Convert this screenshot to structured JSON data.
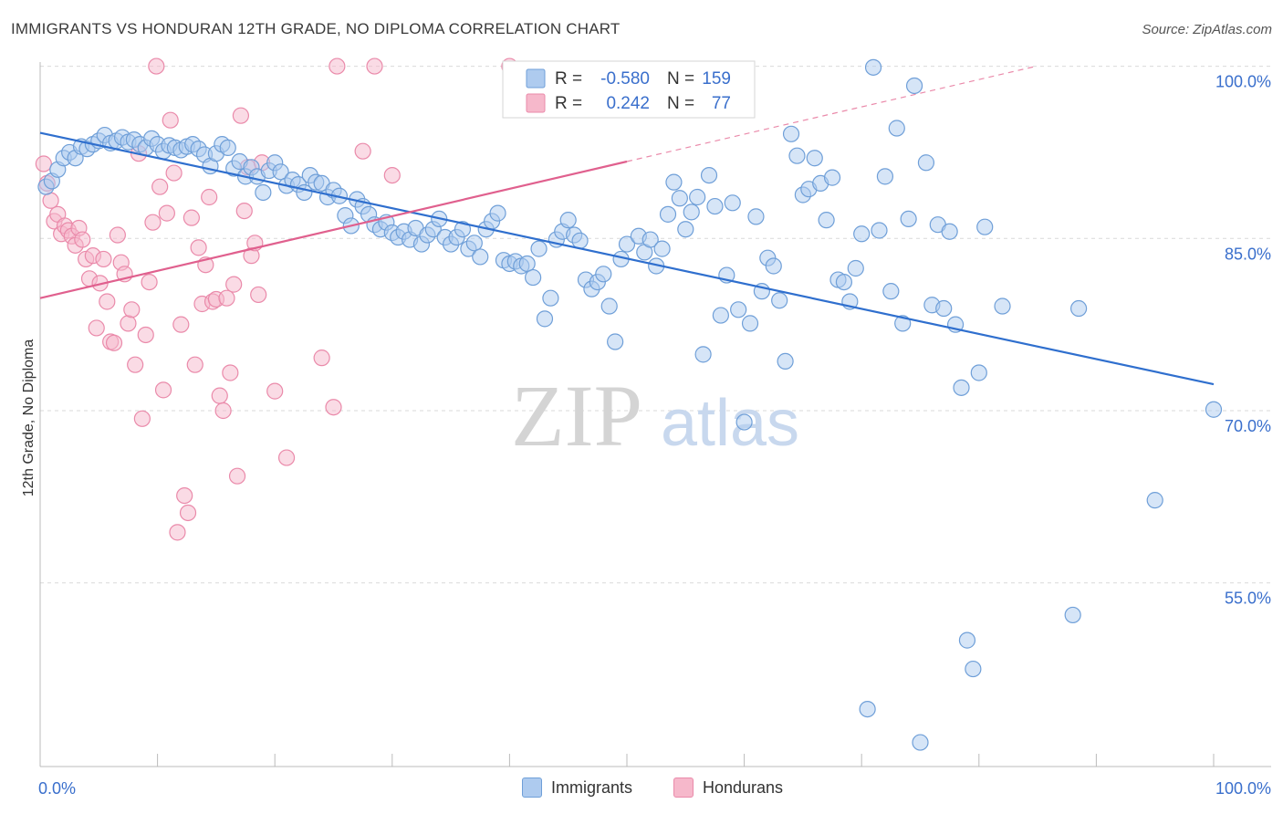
{
  "title": "IMMIGRANTS VS HONDURAN 12TH GRADE, NO DIPLOMA CORRELATION CHART",
  "source": "Source: ZipAtlas.com",
  "watermark": {
    "zip": "ZIP",
    "atlas": "atlas"
  },
  "legend": {
    "rows": [
      {
        "r_label": "R =",
        "r_value": "-0.580",
        "n_label": "N =",
        "n_value": "159"
      },
      {
        "r_label": "R =",
        "r_value": "0.242",
        "n_label": "N =",
        "n_value": "77"
      }
    ]
  },
  "bottom_legend": [
    "Immigrants",
    "Hondurans"
  ],
  "colors": {
    "immigrants_fill": "#aecbef",
    "immigrants_stroke": "#6f9fd8",
    "immigrants_line": "#2f6fce",
    "hondurans_fill": "#f6b8cb",
    "hondurans_stroke": "#ea8aaa",
    "hondurans_line": "#e0608e",
    "value_text": "#3a6fcc",
    "grid": "#d9d9d9"
  },
  "chart_data": {
    "type": "scatter",
    "xlabel": "",
    "ylabel": "12th Grade, No Diploma",
    "xlim": [
      0,
      100
    ],
    "ylim": [
      39,
      101
    ],
    "x_tick_labels": [
      {
        "value": 0,
        "label": "0.0%"
      },
      {
        "value": 100,
        "label": "100.0%"
      }
    ],
    "y_tick_labels": [
      {
        "value": 100,
        "label": "100.0%"
      },
      {
        "value": 85,
        "label": "85.0%"
      },
      {
        "value": 70,
        "label": "70.0%"
      },
      {
        "value": 55,
        "label": "55.0%"
      }
    ],
    "series": [
      {
        "name": "Immigrants",
        "trend": {
          "x0": 0,
          "y0": 94.2,
          "x1": 100,
          "y1": 72.3
        },
        "points": [
          [
            0.5,
            89.5
          ],
          [
            1,
            90
          ],
          [
            1.5,
            91
          ],
          [
            2,
            92
          ],
          [
            2.5,
            92.5
          ],
          [
            3,
            92
          ],
          [
            3.5,
            93
          ],
          [
            4,
            92.8
          ],
          [
            4.5,
            93.2
          ],
          [
            5,
            93.5
          ],
          [
            5.5,
            94
          ],
          [
            6,
            93.3
          ],
          [
            6.5,
            93.5
          ],
          [
            7,
            93.8
          ],
          [
            7.5,
            93.4
          ],
          [
            8,
            93.6
          ],
          [
            8.5,
            93.2
          ],
          [
            9,
            92.9
          ],
          [
            9.5,
            93.7
          ],
          [
            10,
            93.2
          ],
          [
            10.5,
            92.6
          ],
          [
            11,
            93.1
          ],
          [
            11.5,
            92.9
          ],
          [
            12,
            92.7
          ],
          [
            12.5,
            93
          ],
          [
            13,
            93.2
          ],
          [
            13.5,
            92.8
          ],
          [
            14,
            92.3
          ],
          [
            14.5,
            91.3
          ],
          [
            15,
            92.4
          ],
          [
            15.5,
            93.2
          ],
          [
            16,
            92.9
          ],
          [
            16.5,
            91.1
          ],
          [
            17,
            91.7
          ],
          [
            17.5,
            90.4
          ],
          [
            18,
            91.2
          ],
          [
            18.5,
            90.4
          ],
          [
            19,
            89
          ],
          [
            19.5,
            90.9
          ],
          [
            20,
            91.6
          ],
          [
            20.5,
            90.8
          ],
          [
            21,
            89.6
          ],
          [
            21.5,
            90.1
          ],
          [
            22,
            89.7
          ],
          [
            22.5,
            89
          ],
          [
            23,
            90.5
          ],
          [
            23.5,
            89.9
          ],
          [
            24,
            89.8
          ],
          [
            24.5,
            88.6
          ],
          [
            25,
            89.2
          ],
          [
            25.5,
            88.7
          ],
          [
            26,
            87
          ],
          [
            26.5,
            86.1
          ],
          [
            27,
            88.4
          ],
          [
            27.5,
            87.8
          ],
          [
            28,
            87.1
          ],
          [
            28.5,
            86.2
          ],
          [
            29,
            85.8
          ],
          [
            29.5,
            86.4
          ],
          [
            30,
            85.5
          ],
          [
            30.5,
            85.1
          ],
          [
            31,
            85.6
          ],
          [
            31.5,
            84.9
          ],
          [
            32,
            85.9
          ],
          [
            32.5,
            84.5
          ],
          [
            33,
            85.3
          ],
          [
            33.5,
            85.8
          ],
          [
            34,
            86.7
          ],
          [
            34.5,
            85.1
          ],
          [
            35,
            84.5
          ],
          [
            35.5,
            85.1
          ],
          [
            36,
            85.8
          ],
          [
            36.5,
            84.1
          ],
          [
            37,
            84.6
          ],
          [
            37.5,
            83.4
          ],
          [
            38,
            85.8
          ],
          [
            38.5,
            86.5
          ],
          [
            39,
            87.2
          ],
          [
            39.5,
            83.1
          ],
          [
            40,
            82.8
          ],
          [
            40.5,
            83
          ],
          [
            41,
            82.6
          ],
          [
            41.5,
            82.8
          ],
          [
            42,
            81.6
          ],
          [
            42.5,
            84.1
          ],
          [
            43,
            78
          ],
          [
            43.5,
            79.8
          ],
          [
            44,
            84.9
          ],
          [
            44.5,
            85.6
          ],
          [
            45,
            86.6
          ],
          [
            45.5,
            85.3
          ],
          [
            46,
            84.8
          ],
          [
            46.5,
            81.4
          ],
          [
            47,
            80.6
          ],
          [
            47.5,
            81.2
          ],
          [
            48,
            81.9
          ],
          [
            48.5,
            79.1
          ],
          [
            49,
            76
          ],
          [
            49.5,
            83.2
          ],
          [
            50,
            84.5
          ],
          [
            51,
            85.2
          ],
          [
            51.5,
            83.8
          ],
          [
            52,
            84.9
          ],
          [
            52.5,
            82.6
          ],
          [
            53,
            84.1
          ],
          [
            53.5,
            87.1
          ],
          [
            54,
            89.9
          ],
          [
            54.5,
            88.5
          ],
          [
            55,
            85.8
          ],
          [
            55.5,
            87.3
          ],
          [
            56,
            88.6
          ],
          [
            56.5,
            74.9
          ],
          [
            57,
            90.5
          ],
          [
            57.5,
            87.8
          ],
          [
            58,
            78.3
          ],
          [
            58.5,
            81.8
          ],
          [
            59,
            88.1
          ],
          [
            59.5,
            78.8
          ],
          [
            60,
            69
          ],
          [
            60.5,
            77.6
          ],
          [
            61,
            86.9
          ],
          [
            61.5,
            80.4
          ],
          [
            62,
            83.3
          ],
          [
            62.5,
            82.6
          ],
          [
            63,
            79.6
          ],
          [
            63.5,
            74.3
          ],
          [
            64,
            94.1
          ],
          [
            64.5,
            92.2
          ],
          [
            65,
            88.8
          ],
          [
            65.5,
            89.3
          ],
          [
            66,
            92
          ],
          [
            66.5,
            89.8
          ],
          [
            67,
            86.6
          ],
          [
            67.5,
            90.3
          ],
          [
            68,
            81.4
          ],
          [
            68.5,
            81.2
          ],
          [
            69,
            79.5
          ],
          [
            69.5,
            82.4
          ],
          [
            70,
            85.4
          ],
          [
            70.5,
            44
          ],
          [
            71,
            99.9
          ],
          [
            71.5,
            85.7
          ],
          [
            72,
            90.4
          ],
          [
            72.5,
            80.4
          ],
          [
            73,
            94.6
          ],
          [
            73.5,
            77.6
          ],
          [
            74,
            86.7
          ],
          [
            74.5,
            98.3
          ],
          [
            75,
            41.1
          ],
          [
            75.5,
            91.6
          ],
          [
            76,
            79.2
          ],
          [
            76.5,
            86.2
          ],
          [
            77,
            78.9
          ],
          [
            77.5,
            85.6
          ],
          [
            78,
            77.5
          ],
          [
            78.5,
            72
          ],
          [
            79,
            50
          ],
          [
            79.5,
            47.5
          ],
          [
            80,
            73.3
          ],
          [
            80.5,
            86
          ],
          [
            82,
            79.1
          ],
          [
            88,
            52.2
          ],
          [
            88.5,
            78.9
          ],
          [
            95,
            62.2
          ],
          [
            100,
            70.1
          ]
        ]
      },
      {
        "name": "Hondurans",
        "trend": {
          "x0": 0,
          "y0": 79.8,
          "x1": 50,
          "y1": 91.7,
          "dash_to_x": 100,
          "dash_to_y": 103.6
        },
        "points": [
          [
            0.3,
            91.5
          ],
          [
            0.6,
            89.8
          ],
          [
            0.9,
            88.3
          ],
          [
            1.2,
            86.5
          ],
          [
            1.5,
            87.1
          ],
          [
            1.8,
            85.4
          ],
          [
            2.1,
            86.1
          ],
          [
            2.4,
            85.7
          ],
          [
            2.7,
            85.2
          ],
          [
            3,
            84.4
          ],
          [
            3.3,
            85.9
          ],
          [
            3.6,
            84.9
          ],
          [
            3.9,
            83.2
          ],
          [
            4.2,
            81.5
          ],
          [
            4.5,
            83.5
          ],
          [
            4.8,
            77.2
          ],
          [
            5.1,
            81.1
          ],
          [
            5.4,
            83.2
          ],
          [
            5.7,
            79.5
          ],
          [
            6,
            76
          ],
          [
            6.3,
            75.9
          ],
          [
            6.6,
            85.3
          ],
          [
            6.9,
            82.9
          ],
          [
            7.2,
            81.9
          ],
          [
            7.5,
            77.6
          ],
          [
            7.8,
            78.8
          ],
          [
            8.1,
            74
          ],
          [
            8.4,
            92.4
          ],
          [
            8.7,
            69.3
          ],
          [
            9,
            76.6
          ],
          [
            9.3,
            81.2
          ],
          [
            9.6,
            86.4
          ],
          [
            9.9,
            100
          ],
          [
            10.2,
            89.5
          ],
          [
            10.5,
            71.8
          ],
          [
            10.8,
            87.2
          ],
          [
            11.1,
            95.3
          ],
          [
            11.4,
            90.7
          ],
          [
            11.7,
            59.4
          ],
          [
            12,
            77.5
          ],
          [
            12.3,
            62.6
          ],
          [
            12.6,
            61.1
          ],
          [
            12.9,
            86.8
          ],
          [
            13.2,
            74
          ],
          [
            13.5,
            84.2
          ],
          [
            13.8,
            79.3
          ],
          [
            14.1,
            82.7
          ],
          [
            14.4,
            88.6
          ],
          [
            14.7,
            79.5
          ],
          [
            15,
            79.7
          ],
          [
            15.3,
            71.3
          ],
          [
            15.6,
            70
          ],
          [
            15.9,
            79.8
          ],
          [
            16.2,
            73.3
          ],
          [
            16.5,
            81
          ],
          [
            16.8,
            64.3
          ],
          [
            17.1,
            95.7
          ],
          [
            17.4,
            87.4
          ],
          [
            17.7,
            91.2
          ],
          [
            18,
            83.5
          ],
          [
            18.3,
            84.6
          ],
          [
            18.6,
            80.1
          ],
          [
            18.9,
            91.6
          ],
          [
            20,
            71.7
          ],
          [
            21,
            65.9
          ],
          [
            24,
            74.6
          ],
          [
            25,
            70.3
          ],
          [
            25.3,
            100
          ],
          [
            27.5,
            92.6
          ],
          [
            28.5,
            100
          ],
          [
            30,
            90.5
          ],
          [
            40,
            100
          ]
        ]
      }
    ]
  }
}
